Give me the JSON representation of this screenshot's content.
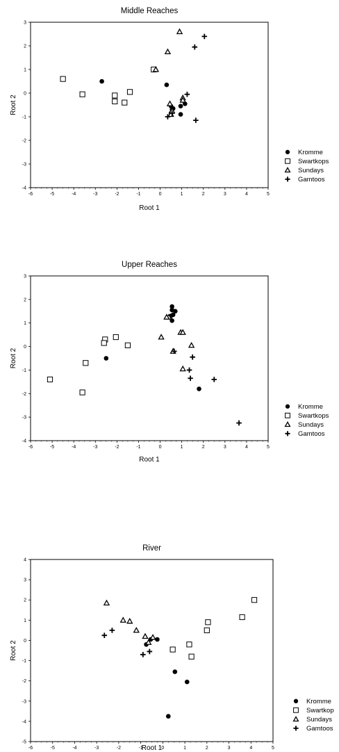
{
  "chart_data": [
    {
      "type": "scatter",
      "title": "Middle Reaches",
      "xlabel": "Root 1",
      "ylabel": "Root 2",
      "xlim": [
        -6,
        5
      ],
      "ylim": [
        -4,
        3
      ],
      "xticks": [
        -6,
        -5,
        -4,
        -3,
        -2,
        -1,
        0,
        1,
        2,
        3,
        4,
        5
      ],
      "yticks": [
        -4,
        -3,
        -2,
        -1,
        0,
        1,
        2,
        3
      ],
      "legend_position": "right",
      "series": [
        {
          "name": "Kromme",
          "marker": "circle",
          "points": [
            [
              -2.7,
              0.5
            ],
            [
              0.3,
              0.35
            ],
            [
              0.5,
              -0.55
            ],
            [
              0.55,
              -0.7
            ],
            [
              0.5,
              -0.85
            ],
            [
              0.95,
              -0.55
            ],
            [
              0.95,
              -0.9
            ],
            [
              1.15,
              -0.45
            ],
            [
              0.6,
              -0.65
            ]
          ]
        },
        {
          "name": "Swartkops",
          "marker": "square",
          "points": [
            [
              -4.5,
              0.6
            ],
            [
              -3.6,
              -0.05
            ],
            [
              -2.1,
              -0.1
            ],
            [
              -2.1,
              -0.35
            ],
            [
              -1.65,
              -0.4
            ],
            [
              -1.4,
              0.05
            ],
            [
              -0.3,
              1.0
            ]
          ]
        },
        {
          "name": "Sundays",
          "marker": "triangle",
          "points": [
            [
              0.9,
              2.6
            ],
            [
              0.35,
              1.75
            ],
            [
              -0.2,
              1.0
            ],
            [
              0.45,
              -0.45
            ],
            [
              1.05,
              -0.2
            ],
            [
              1.05,
              -0.3
            ],
            [
              0.5,
              -0.9
            ],
            [
              0.55,
              -0.75
            ]
          ]
        },
        {
          "name": "Gamtoos",
          "marker": "plus",
          "points": [
            [
              2.05,
              2.4
            ],
            [
              1.6,
              1.95
            ],
            [
              1.25,
              -0.05
            ],
            [
              0.35,
              -1.0
            ],
            [
              1.65,
              -1.15
            ],
            [
              0.55,
              -0.85
            ]
          ]
        }
      ]
    },
    {
      "type": "scatter",
      "title": "Upper Reaches",
      "xlabel": "Root 1",
      "ylabel": "Root 2",
      "xlim": [
        -6,
        5
      ],
      "ylim": [
        -4,
        3
      ],
      "xticks": [
        -6,
        -5,
        -4,
        -3,
        -2,
        -1,
        0,
        1,
        2,
        3,
        4,
        5
      ],
      "yticks": [
        -4,
        -3,
        -2,
        -1,
        0,
        1,
        2,
        3
      ],
      "legend_position": "right",
      "series": [
        {
          "name": "Kromme",
          "marker": "circle",
          "points": [
            [
              0.55,
              1.7
            ],
            [
              0.55,
              1.55
            ],
            [
              0.7,
              1.5
            ],
            [
              0.6,
              1.35
            ],
            [
              0.5,
              1.3
            ],
            [
              0.55,
              1.1
            ],
            [
              -2.5,
              -0.5
            ],
            [
              1.8,
              -1.8
            ]
          ]
        },
        {
          "name": "Swartkops",
          "marker": "square",
          "points": [
            [
              -5.1,
              -1.4
            ],
            [
              -3.6,
              -1.95
            ],
            [
              -3.45,
              -0.7
            ],
            [
              -2.55,
              0.3
            ],
            [
              -2.6,
              0.15
            ],
            [
              -2.05,
              0.4
            ],
            [
              -1.5,
              0.05
            ]
          ]
        },
        {
          "name": "Sundays",
          "marker": "triangle",
          "points": [
            [
              0.4,
              1.25
            ],
            [
              0.3,
              1.25
            ],
            [
              0.05,
              0.4
            ],
            [
              0.95,
              0.6
            ],
            [
              1.05,
              0.6
            ],
            [
              1.45,
              0.05
            ],
            [
              1.05,
              -0.95
            ],
            [
              0.6,
              -0.2
            ]
          ]
        },
        {
          "name": "Gamtoos",
          "marker": "plus",
          "points": [
            [
              0.65,
              -0.2
            ],
            [
              1.5,
              -0.45
            ],
            [
              1.35,
              -1.0
            ],
            [
              1.4,
              -1.35
            ],
            [
              2.5,
              -1.4
            ],
            [
              3.65,
              -3.25
            ]
          ]
        }
      ]
    },
    {
      "type": "scatter",
      "title": "River",
      "xlabel": "Root 1",
      "ylabel": "Root 2",
      "xlim": [
        -6,
        5
      ],
      "ylim": [
        -5,
        4
      ],
      "xticks": [
        -6,
        -5,
        -4,
        -3,
        -2,
        -1,
        0,
        1,
        2,
        3,
        4,
        5
      ],
      "yticks": [
        -5,
        -4,
        -3,
        -2,
        -1,
        0,
        1,
        2,
        3,
        4
      ],
      "legend_position": "right",
      "series": [
        {
          "name": "Kromme",
          "marker": "circle",
          "points": [
            [
              -0.75,
              -0.2
            ],
            [
              -0.55,
              0.05
            ],
            [
              -0.25,
              0.05
            ],
            [
              0.55,
              -1.55
            ],
            [
              1.1,
              -2.05
            ],
            [
              0.25,
              -3.75
            ]
          ]
        },
        {
          "name": "Swartkop",
          "marker": "square",
          "points": [
            [
              0.45,
              -0.45
            ],
            [
              1.2,
              -0.2
            ],
            [
              1.3,
              -0.8
            ],
            [
              2.0,
              0.5
            ],
            [
              2.05,
              0.9
            ],
            [
              3.6,
              1.15
            ],
            [
              4.15,
              2.0
            ]
          ]
        },
        {
          "name": "Sundays",
          "marker": "triangle",
          "points": [
            [
              -2.55,
              1.85
            ],
            [
              -1.8,
              1.0
            ],
            [
              -1.5,
              0.95
            ],
            [
              -1.2,
              0.5
            ],
            [
              -0.8,
              0.2
            ],
            [
              -0.45,
              0.15
            ],
            [
              -0.65,
              -0.1
            ]
          ]
        },
        {
          "name": "Gamtoos",
          "marker": "plus",
          "points": [
            [
              -2.65,
              0.25
            ],
            [
              -2.3,
              0.5
            ],
            [
              -0.9,
              -0.7
            ],
            [
              -0.6,
              -0.55
            ]
          ]
        }
      ]
    }
  ]
}
